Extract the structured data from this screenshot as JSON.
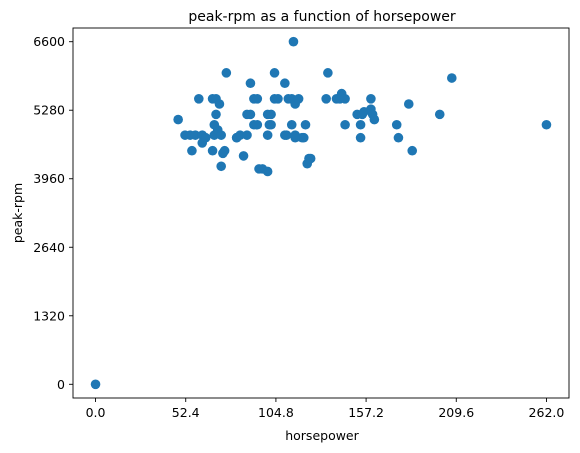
{
  "chart_data": {
    "type": "scatter",
    "title": "peak-rpm as a function of horsepower",
    "xlabel": "horsepower",
    "ylabel": "peak-rpm",
    "xlim": [
      -13.1,
      275.1
    ],
    "ylim": [
      -264,
      6864
    ],
    "xticks": [
      0.0,
      52.4,
      104.8,
      157.2,
      209.6,
      262.0
    ],
    "xtick_labels": [
      "0.0",
      "52.4",
      "104.8",
      "157.2",
      "209.6",
      "262.0"
    ],
    "yticks": [
      0,
      1320,
      2640,
      3960,
      5280,
      6600
    ],
    "ytick_labels": [
      "0",
      "1320",
      "2640",
      "3960",
      "5280",
      "6600"
    ],
    "grid": false,
    "marker_color": "#1f77b4",
    "points": [
      [
        0.0,
        0
      ],
      [
        48,
        5100
      ],
      [
        52,
        4800
      ],
      [
        55,
        4800
      ],
      [
        56,
        4500
      ],
      [
        58,
        4800
      ],
      [
        60,
        5500
      ],
      [
        62,
        4800
      ],
      [
        62,
        4650
      ],
      [
        64,
        4750
      ],
      [
        68,
        4500
      ],
      [
        68,
        5500
      ],
      [
        69,
        5000
      ],
      [
        69,
        4800
      ],
      [
        70,
        5500
      ],
      [
        70,
        5200
      ],
      [
        71,
        4900
      ],
      [
        72,
        5400
      ],
      [
        73,
        4800
      ],
      [
        73,
        4200
      ],
      [
        74,
        4450
      ],
      [
        75,
        4500
      ],
      [
        76,
        6000
      ],
      [
        82,
        4750
      ],
      [
        82,
        4750
      ],
      [
        84,
        4800
      ],
      [
        86,
        4400
      ],
      [
        88,
        4800
      ],
      [
        88,
        5200
      ],
      [
        90,
        5800
      ],
      [
        90,
        5200
      ],
      [
        92,
        5500
      ],
      [
        92,
        5000
      ],
      [
        94,
        5500
      ],
      [
        94,
        5000
      ],
      [
        95,
        4150
      ],
      [
        97,
        4150
      ],
      [
        100,
        4100
      ],
      [
        100,
        4800
      ],
      [
        100,
        5200
      ],
      [
        101,
        5000
      ],
      [
        102,
        5000
      ],
      [
        102,
        5200
      ],
      [
        104,
        6000
      ],
      [
        104,
        5500
      ],
      [
        106,
        5500
      ],
      [
        110,
        4800
      ],
      [
        110,
        5800
      ],
      [
        111,
        4800
      ],
      [
        112,
        5500
      ],
      [
        114,
        5500
      ],
      [
        114,
        5000
      ],
      [
        115,
        6600
      ],
      [
        116,
        4800
      ],
      [
        116,
        5400
      ],
      [
        116,
        4750
      ],
      [
        118,
        5500
      ],
      [
        120,
        4750
      ],
      [
        121,
        4750
      ],
      [
        122,
        5000
      ],
      [
        123,
        4250
      ],
      [
        124,
        4350
      ],
      [
        125,
        4350
      ],
      [
        134,
        5500
      ],
      [
        135,
        6000
      ],
      [
        140,
        5500
      ],
      [
        142,
        5500
      ],
      [
        143,
        5600
      ],
      [
        145,
        5500
      ],
      [
        145,
        5000
      ],
      [
        152,
        5200
      ],
      [
        154,
        5000
      ],
      [
        154,
        4750
      ],
      [
        155,
        5200
      ],
      [
        156,
        5250
      ],
      [
        160,
        5300
      ],
      [
        160,
        5500
      ],
      [
        161,
        5200
      ],
      [
        162,
        5100
      ],
      [
        175,
        5000
      ],
      [
        176,
        4750
      ],
      [
        182,
        5400
      ],
      [
        184,
        4500
      ],
      [
        200,
        5200
      ],
      [
        207,
        5900
      ],
      [
        262,
        5000
      ]
    ]
  }
}
